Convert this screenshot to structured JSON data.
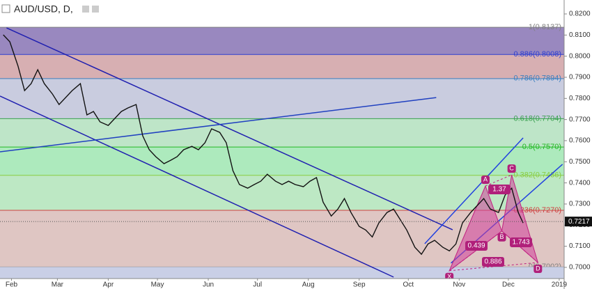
{
  "chart_data": {
    "type": "line",
    "title": "AUD/USD, D,",
    "color": "#111111",
    "x": [
      -5,
      -1,
      4,
      8,
      12,
      16,
      20,
      25,
      29,
      33,
      37,
      42,
      46,
      50,
      54,
      59,
      63,
      67,
      71,
      76,
      80,
      84,
      88,
      93,
      97,
      101,
      105,
      110,
      114,
      118,
      122,
      127,
      131,
      135,
      139,
      144,
      148,
      152,
      156,
      161,
      165,
      169,
      173,
      178,
      182,
      186,
      190,
      195,
      199,
      203,
      207,
      212,
      216,
      220,
      224,
      229,
      233,
      237,
      241,
      246,
      250,
      254,
      258,
      263,
      267,
      271,
      275,
      280,
      284,
      288,
      292,
      297,
      301,
      305,
      309,
      312
    ],
    "values": [
      0.8101,
      0.8068,
      0.7953,
      0.7837,
      0.787,
      0.7936,
      0.787,
      0.7821,
      0.7771,
      0.7804,
      0.7837,
      0.787,
      0.7722,
      0.7738,
      0.7689,
      0.7672,
      0.7705,
      0.7738,
      0.7755,
      0.7771,
      0.7623,
      0.7557,
      0.7524,
      0.7491,
      0.7507,
      0.7524,
      0.7557,
      0.7573,
      0.7557,
      0.759,
      0.7656,
      0.7639,
      0.759,
      0.7458,
      0.7392,
      0.7375,
      0.7392,
      0.7408,
      0.7441,
      0.7408,
      0.7392,
      0.7408,
      0.7392,
      0.7382,
      0.7408,
      0.7425,
      0.7309,
      0.7243,
      0.7276,
      0.7326,
      0.726,
      0.7194,
      0.7177,
      0.7144,
      0.721,
      0.726,
      0.7276,
      0.7227,
      0.7177,
      0.7095,
      0.7062,
      0.7111,
      0.7128,
      0.7095,
      0.7078,
      0.7111,
      0.721,
      0.726,
      0.7293,
      0.7326,
      0.7276,
      0.726,
      0.7342,
      0.7375,
      0.726,
      0.721
    ],
    "xlim": [
      -7,
      337
    ],
    "xticks": [
      {
        "value": 0,
        "label": "Feb"
      },
      {
        "value": 28,
        "label": "Mar"
      },
      {
        "value": 59,
        "label": "Apr"
      },
      {
        "value": 89,
        "label": "May"
      },
      {
        "value": 120,
        "label": "Jun"
      },
      {
        "value": 150,
        "label": "Jul"
      },
      {
        "value": 181,
        "label": "Aug"
      },
      {
        "value": 212,
        "label": "Sep"
      },
      {
        "value": 242,
        "label": "Oct"
      },
      {
        "value": 273,
        "label": "Nov"
      },
      {
        "value": 303,
        "label": "Dec"
      },
      {
        "value": 334,
        "label": "2019"
      }
    ],
    "ylim": [
      0.6947,
      0.8266
    ],
    "yticks": [
      {
        "value": 0.7,
        "label": "0.7000"
      },
      {
        "value": 0.71,
        "label": "0.7100"
      },
      {
        "value": 0.72,
        "label": "0.7200"
      },
      {
        "value": 0.73,
        "label": "0.7300"
      },
      {
        "value": 0.74,
        "label": "0.7400"
      },
      {
        "value": 0.75,
        "label": "0.7500"
      },
      {
        "value": 0.76,
        "label": "0.7600"
      },
      {
        "value": 0.77,
        "label": "0.7700"
      },
      {
        "value": 0.78,
        "label": "0.7800"
      },
      {
        "value": 0.79,
        "label": "0.7900"
      },
      {
        "value": 0.8,
        "label": "0.8000"
      },
      {
        "value": 0.81,
        "label": "0.8100"
      },
      {
        "value": 0.82,
        "label": "0.8200"
      }
    ],
    "last_price": {
      "value": 0.7217,
      "label": "0.7217"
    },
    "fib_levels": [
      {
        "label": "1(0.8137)",
        "value": 0.8137,
        "color": "#808080",
        "fill": "#8e7bb8"
      },
      {
        "label": "0.886(0.8008)",
        "value": 0.8008,
        "color": "#2f3fd0",
        "fill": "#d3a6aa"
      },
      {
        "label": "0.786(0.7894)",
        "value": 0.7894,
        "color": "#3a7fc0",
        "fill": "#c3c6dc"
      },
      {
        "label": "0.618(0.7704)",
        "value": 0.7704,
        "color": "#3aa050",
        "fill": "#b7e2c2"
      },
      {
        "label": "0.5(0.7570)",
        "value": 0.757,
        "color": "#22b822",
        "fill": "#a4e8b6"
      },
      {
        "label": "0.382(0.7436)",
        "value": 0.7436,
        "color": "#8acc40",
        "fill": "#b6e6be"
      },
      {
        "label": "0.236(0.7270)",
        "value": 0.727,
        "color": "#d04040",
        "fill": "#dcc0bc"
      },
      {
        "label": "0(0.7002)",
        "value": 0.7002,
        "color": "#808080",
        "fill": "#e3b8b8"
      }
    ],
    "trendlines": [
      {
        "x": [
          -3,
          269
        ],
        "y": [
          0.8134,
          0.7178
        ],
        "color": "#2020b0"
      },
      {
        "x": [
          -7,
          233
        ],
        "y": [
          0.7811,
          0.6954
        ],
        "color": "#2020b0"
      },
      {
        "x": [
          -7,
          259
        ],
        "y": [
          0.7547,
          0.7804
        ],
        "color": "#2040c0"
      },
      {
        "x": [
          252,
          312
        ],
        "y": [
          0.7112,
          0.7613
        ],
        "color": "#2040e0"
      },
      {
        "x": [
          268,
          336
        ],
        "y": [
          0.702,
          0.7488
        ],
        "color": "#2040e0"
      }
    ],
    "pattern": {
      "points": [
        {
          "label": "X",
          "x": 267,
          "y": 0.6984
        },
        {
          "label": "A",
          "x": 289,
          "y": 0.7385
        },
        {
          "label": "B",
          "x": 299,
          "y": 0.7172
        },
        {
          "label": "C",
          "x": 305,
          "y": 0.7438
        },
        {
          "label": "D",
          "x": 321,
          "y": 0.7023
        }
      ],
      "ratios": [
        "1.37",
        "0.439",
        "1.743",
        "0.886"
      ]
    }
  }
}
